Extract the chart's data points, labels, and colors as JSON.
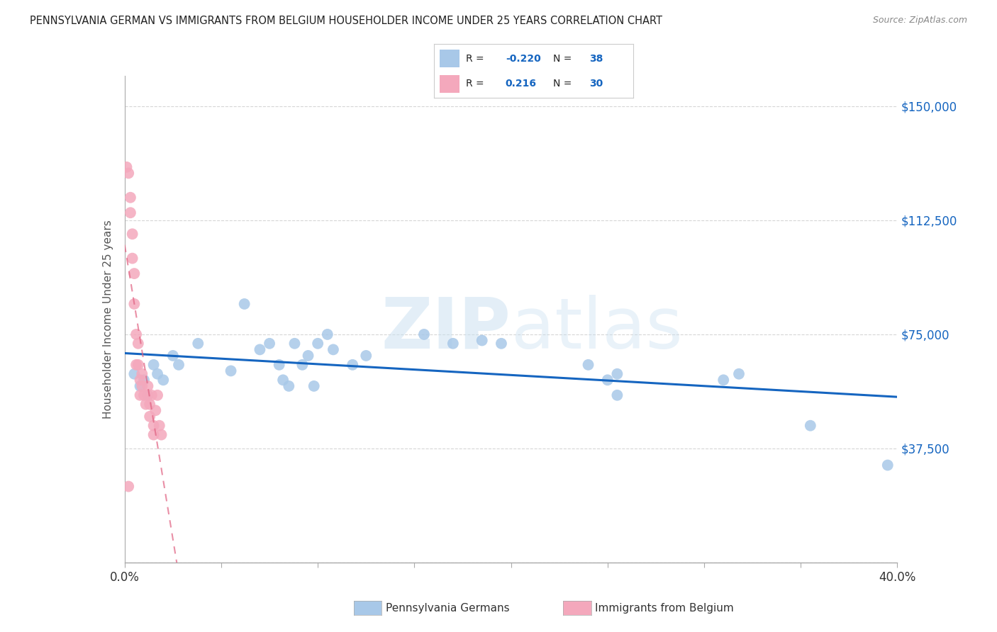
{
  "title": "PENNSYLVANIA GERMAN VS IMMIGRANTS FROM BELGIUM HOUSEHOLDER INCOME UNDER 25 YEARS CORRELATION CHART",
  "source": "Source: ZipAtlas.com",
  "ylabel": "Householder Income Under 25 years",
  "xlim": [
    0.0,
    0.4
  ],
  "ylim": [
    0,
    160000
  ],
  "yticks": [
    0,
    37500,
    75000,
    112500,
    150000
  ],
  "ytick_labels": [
    "",
    "$37,500",
    "$75,000",
    "$112,500",
    "$150,000"
  ],
  "xticks": [
    0.0,
    0.05,
    0.1,
    0.15,
    0.2,
    0.25,
    0.3,
    0.35,
    0.4
  ],
  "xtick_labels": [
    "0.0%",
    "",
    "",
    "",
    "",
    "",
    "",
    "",
    "40.0%"
  ],
  "blue_color": "#a8c8e8",
  "pink_color": "#f4a8bc",
  "blue_line_color": "#1565c0",
  "pink_line_color": "#e06080",
  "bg_color": "#ffffff",
  "grid_color": "#cccccc",
  "watermark": "ZIPatlas",
  "blue_scatter_x": [
    0.005,
    0.008,
    0.01,
    0.012,
    0.015,
    0.017,
    0.02,
    0.025,
    0.028,
    0.038,
    0.055,
    0.062,
    0.07,
    0.075,
    0.08,
    0.082,
    0.085,
    0.088,
    0.092,
    0.095,
    0.098,
    0.1,
    0.105,
    0.108,
    0.118,
    0.125,
    0.155,
    0.17,
    0.185,
    0.195,
    0.24,
    0.25,
    0.255,
    0.255,
    0.31,
    0.318,
    0.355,
    0.395
  ],
  "blue_scatter_y": [
    62000,
    58000,
    60000,
    55000,
    65000,
    62000,
    60000,
    68000,
    65000,
    72000,
    63000,
    85000,
    70000,
    72000,
    65000,
    60000,
    58000,
    72000,
    65000,
    68000,
    58000,
    72000,
    75000,
    70000,
    65000,
    68000,
    75000,
    72000,
    73000,
    72000,
    65000,
    60000,
    62000,
    55000,
    60000,
    62000,
    45000,
    32000
  ],
  "pink_scatter_x": [
    0.001,
    0.002,
    0.003,
    0.003,
    0.004,
    0.004,
    0.005,
    0.005,
    0.006,
    0.006,
    0.007,
    0.007,
    0.008,
    0.008,
    0.009,
    0.009,
    0.01,
    0.011,
    0.012,
    0.012,
    0.013,
    0.013,
    0.014,
    0.015,
    0.015,
    0.016,
    0.017,
    0.018,
    0.019,
    0.002
  ],
  "pink_scatter_y": [
    130000,
    128000,
    120000,
    115000,
    108000,
    100000,
    95000,
    85000,
    75000,
    65000,
    72000,
    65000,
    60000,
    55000,
    62000,
    58000,
    55000,
    52000,
    55000,
    58000,
    52000,
    48000,
    55000,
    45000,
    42000,
    50000,
    55000,
    45000,
    42000,
    25000
  ]
}
